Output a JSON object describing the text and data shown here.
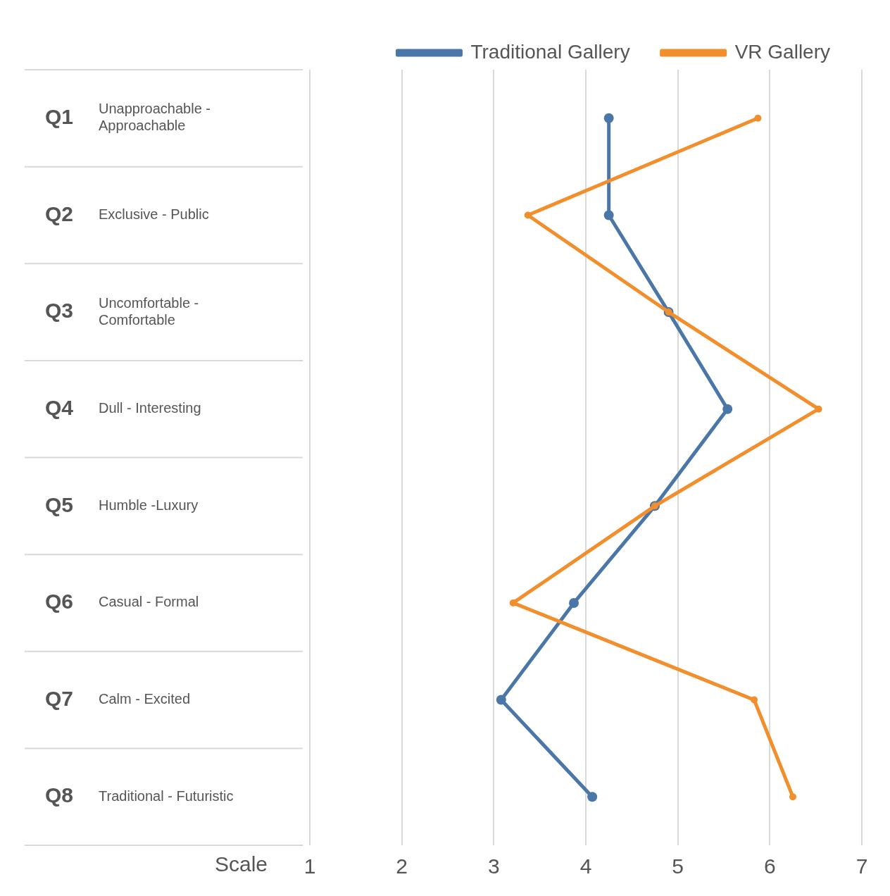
{
  "chart_data": {
    "type": "line",
    "orientation": "horizontal",
    "xlabel": "Scale",
    "categories": [
      "Unapproachable - Approachable",
      "Exclusive - Public",
      "Uncomfortable - Comfortable",
      "Dull - Interesting",
      "Humble -Luxury",
      "Casual - Formal",
      "Calm - Excited",
      "Traditional - Futuristic"
    ],
    "series": [
      {
        "name": "Traditional Gallery",
        "color": "#4a76a8",
        "values": [
          4.25,
          4.25,
          4.9,
          5.54,
          4.75,
          3.87,
          3.08,
          4.07
        ]
      },
      {
        "name": "VR Gallery",
        "color": "#f28e2b",
        "values": [
          5.87,
          3.37,
          4.9,
          6.53,
          4.75,
          3.21,
          5.83,
          6.25
        ]
      }
    ],
    "xlim": [
      1,
      7
    ],
    "xticks": [
      1,
      2,
      3,
      4,
      5,
      6,
      7
    ],
    "grid": "x",
    "legend": "top right",
    "marker": "circle",
    "annotations": [
      "Q1",
      "Q2",
      "Q3",
      "Q4",
      "Q5",
      "Q6",
      "Q7",
      "Q8"
    ]
  }
}
